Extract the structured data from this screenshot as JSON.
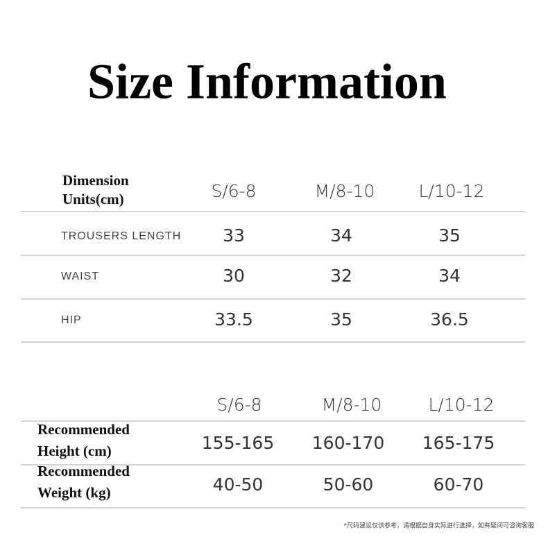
{
  "title": "Size Information",
  "table1": {
    "header": {
      "label": [
        "Dimension",
        "Units(cm)"
      ],
      "columns": [
        "S/6-8",
        "M/8-10",
        "L/10-12"
      ]
    },
    "rows": [
      {
        "label": "TROUSERS LENGTH",
        "values": [
          33,
          34,
          35
        ]
      },
      {
        "label": "WAIST",
        "values": [
          30,
          32,
          34
        ]
      },
      {
        "label": "HIP",
        "values": [
          33.5,
          35,
          36.5
        ]
      }
    ]
  },
  "table2": {
    "header": {
      "columns": [
        "S/6-8",
        "M/8-10",
        "L/10-12"
      ]
    },
    "rows": [
      {
        "label": [
          "Recommended",
          "Height (cm)"
        ],
        "values": [
          "155-165",
          "160-170",
          "165-175"
        ]
      },
      {
        "label": [
          "Recommended",
          "Weight (kg)"
        ],
        "values": [
          "40-50",
          "50-60",
          "60-70"
        ]
      }
    ]
  },
  "footnote": "*尺码建议仅供参考，请根据自身实际进行选择，如有疑问可咨询客服"
}
